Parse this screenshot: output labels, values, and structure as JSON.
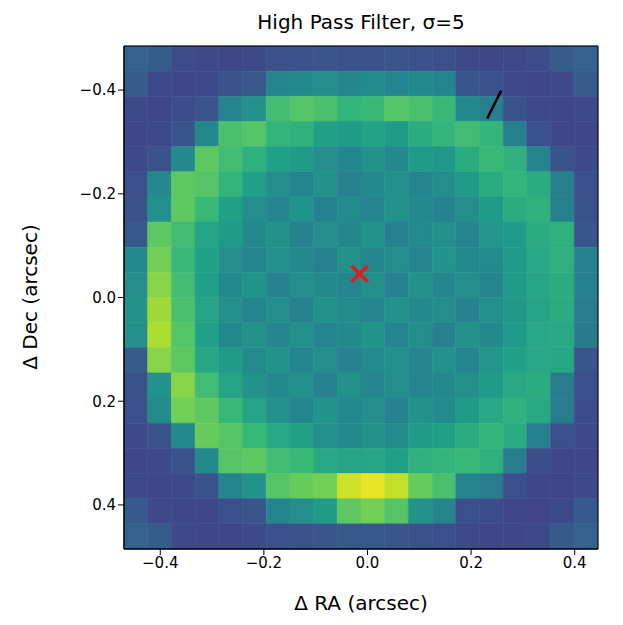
{
  "chart_data": {
    "type": "heatmap",
    "title": "High Pass Filter, σ=5",
    "x_label": "Δ RA (arcsec)",
    "y_label": "Δ Dec (arcsec)",
    "xlim": [
      -0.47,
      0.445
    ],
    "ylim": [
      -0.485,
      0.485
    ],
    "xticks": [
      {
        "value": -0.4,
        "label": "−0.4"
      },
      {
        "value": -0.2,
        "label": "−0.2"
      },
      {
        "value": 0,
        "label": "0.0"
      },
      {
        "value": 0.2,
        "label": "0.2"
      },
      {
        "value": 0.4,
        "label": "0.4"
      }
    ],
    "yticks": [
      {
        "value": -0.4,
        "label": "−0.4"
      },
      {
        "value": -0.2,
        "label": "−0.2"
      },
      {
        "value": 0,
        "label": "0.0"
      },
      {
        "value": 0.2,
        "label": "0.2"
      },
      {
        "value": 0.4,
        "label": "0.4"
      }
    ],
    "zlim": [
      -0.1,
      1.0
    ],
    "cells": [
      [
        0.24,
        0.22,
        0.16,
        0.15,
        0.14,
        0.15,
        0.17,
        0.18,
        0.19,
        0.18,
        0.18,
        0.19,
        0.18,
        0.17,
        0.15,
        0.14,
        0.15,
        0.16,
        0.22,
        0.24
      ],
      [
        0.22,
        0.15,
        0.14,
        0.15,
        0.18,
        0.2,
        0.4,
        0.42,
        0.44,
        0.41,
        0.43,
        0.4,
        0.42,
        0.4,
        0.19,
        0.18,
        0.15,
        0.14,
        0.15,
        0.22
      ],
      [
        0.15,
        0.14,
        0.16,
        0.19,
        0.4,
        0.45,
        0.66,
        0.7,
        0.68,
        0.62,
        0.64,
        0.7,
        0.68,
        0.64,
        0.42,
        0.38,
        0.18,
        0.15,
        0.14,
        0.15
      ],
      [
        0.14,
        0.15,
        0.19,
        0.42,
        0.68,
        0.7,
        0.62,
        0.6,
        0.52,
        0.5,
        0.53,
        0.5,
        0.58,
        0.62,
        0.66,
        0.62,
        0.38,
        0.17,
        0.14,
        0.14
      ],
      [
        0.15,
        0.18,
        0.42,
        0.72,
        0.66,
        0.6,
        0.52,
        0.5,
        0.44,
        0.4,
        0.46,
        0.42,
        0.5,
        0.48,
        0.58,
        0.64,
        0.6,
        0.4,
        0.18,
        0.15
      ],
      [
        0.17,
        0.42,
        0.72,
        0.7,
        0.62,
        0.52,
        0.44,
        0.4,
        0.46,
        0.38,
        0.42,
        0.45,
        0.4,
        0.44,
        0.5,
        0.58,
        0.62,
        0.58,
        0.38,
        0.17
      ],
      [
        0.18,
        0.45,
        0.72,
        0.64,
        0.52,
        0.44,
        0.4,
        0.47,
        0.38,
        0.43,
        0.4,
        0.46,
        0.42,
        0.39,
        0.44,
        0.5,
        0.58,
        0.6,
        0.38,
        0.18
      ],
      [
        0.2,
        0.72,
        0.66,
        0.54,
        0.5,
        0.42,
        0.46,
        0.39,
        0.44,
        0.41,
        0.47,
        0.38,
        0.43,
        0.45,
        0.4,
        0.48,
        0.5,
        0.58,
        0.6,
        0.19
      ],
      [
        0.42,
        0.76,
        0.64,
        0.52,
        0.44,
        0.4,
        0.45,
        0.42,
        0.38,
        0.46,
        0.41,
        0.44,
        0.4,
        0.47,
        0.42,
        0.43,
        0.5,
        0.56,
        0.6,
        0.38
      ],
      [
        0.44,
        0.8,
        0.66,
        0.52,
        0.42,
        0.47,
        0.39,
        0.44,
        0.42,
        0.4,
        0.45,
        0.39,
        0.46,
        0.41,
        0.44,
        0.4,
        0.5,
        0.55,
        0.58,
        0.38
      ],
      [
        0.46,
        0.84,
        0.68,
        0.54,
        0.45,
        0.4,
        0.44,
        0.38,
        0.46,
        0.43,
        0.4,
        0.46,
        0.42,
        0.44,
        0.39,
        0.45,
        0.48,
        0.54,
        0.58,
        0.36
      ],
      [
        0.45,
        0.86,
        0.7,
        0.52,
        0.42,
        0.46,
        0.41,
        0.45,
        0.4,
        0.42,
        0.47,
        0.4,
        0.44,
        0.38,
        0.46,
        0.42,
        0.5,
        0.56,
        0.56,
        0.35
      ],
      [
        0.22,
        0.8,
        0.72,
        0.55,
        0.5,
        0.43,
        0.47,
        0.4,
        0.44,
        0.39,
        0.43,
        0.45,
        0.41,
        0.46,
        0.4,
        0.48,
        0.52,
        0.56,
        0.55,
        0.19
      ],
      [
        0.18,
        0.46,
        0.8,
        0.66,
        0.54,
        0.46,
        0.42,
        0.45,
        0.39,
        0.46,
        0.41,
        0.44,
        0.4,
        0.42,
        0.45,
        0.5,
        0.56,
        0.58,
        0.36,
        0.17
      ],
      [
        0.17,
        0.43,
        0.76,
        0.72,
        0.64,
        0.54,
        0.45,
        0.4,
        0.47,
        0.42,
        0.44,
        0.39,
        0.46,
        0.43,
        0.5,
        0.56,
        0.6,
        0.56,
        0.36,
        0.16
      ],
      [
        0.15,
        0.18,
        0.42,
        0.74,
        0.7,
        0.64,
        0.56,
        0.52,
        0.45,
        0.42,
        0.46,
        0.43,
        0.5,
        0.52,
        0.58,
        0.62,
        0.58,
        0.38,
        0.17,
        0.15
      ],
      [
        0.14,
        0.15,
        0.18,
        0.42,
        0.7,
        0.72,
        0.66,
        0.64,
        0.56,
        0.54,
        0.55,
        0.52,
        0.6,
        0.62,
        0.64,
        0.6,
        0.36,
        0.16,
        0.14,
        0.14
      ],
      [
        0.15,
        0.14,
        0.15,
        0.18,
        0.4,
        0.46,
        0.7,
        0.74,
        0.76,
        0.92,
        0.96,
        0.9,
        0.74,
        0.68,
        0.4,
        0.36,
        0.17,
        0.14,
        0.13,
        0.15
      ],
      [
        0.21,
        0.15,
        0.14,
        0.14,
        0.17,
        0.19,
        0.4,
        0.44,
        0.5,
        0.72,
        0.76,
        0.7,
        0.46,
        0.4,
        0.17,
        0.16,
        0.14,
        0.13,
        0.15,
        0.21
      ],
      [
        0.24,
        0.22,
        0.15,
        0.14,
        0.14,
        0.15,
        0.17,
        0.18,
        0.19,
        0.2,
        0.2,
        0.19,
        0.18,
        0.17,
        0.15,
        0.14,
        0.14,
        0.15,
        0.21,
        0.24
      ]
    ],
    "annotations": [
      {
        "type": "marker",
        "marker": "x",
        "color": "#e41a1c",
        "x": -0.015,
        "y": -0.046
      },
      {
        "type": "line",
        "color": "#000000",
        "x": [
          0.231,
          0.258
        ],
        "y": [
          -0.345,
          -0.399
        ]
      }
    ]
  }
}
